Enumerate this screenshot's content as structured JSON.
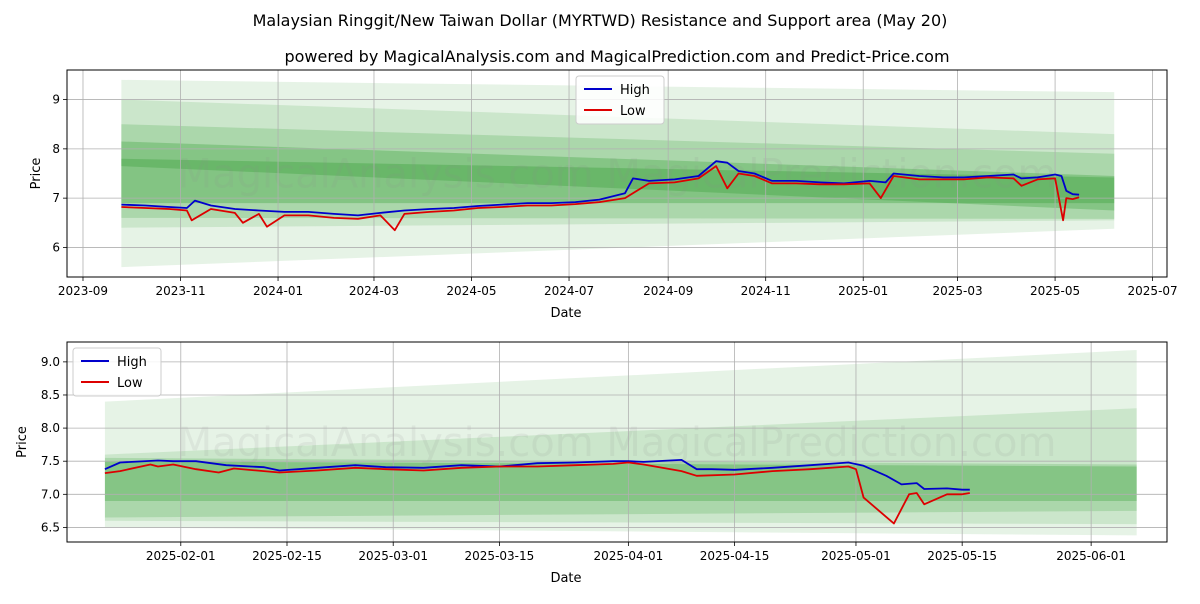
{
  "title": "Malaysian Ringgit/New Taiwan Dollar (MYRTWD) Resistance and Support area (May 20)",
  "subtitle": "powered by MagicalAnalysis.com and MagicalPrediction.com and Predict-Price.com",
  "watermark": "MagicalAnalysis.com    MagicalPrediction.com",
  "colors": {
    "high": "#0000cc",
    "low": "#dd0000",
    "band": "#2e9a2e",
    "grid": "#b0b0b0"
  },
  "chart_data": [
    {
      "type": "line",
      "xlabel": "Date",
      "ylabel": "Price",
      "x_ticks": [
        "2023-09-01",
        "2023-11-01",
        "2024-01-01",
        "2024-03-01",
        "2024-05-01",
        "2024-07-01",
        "2024-09-01",
        "2024-11-01",
        "2025-01-01",
        "2025-03-01",
        "2025-05-01",
        "2025-07-01"
      ],
      "x_tick_labels": [
        "2023-09",
        "2023-11",
        "2024-01",
        "2024-03",
        "2024-05",
        "2024-07",
        "2024-09",
        "2024-11",
        "2025-01",
        "2025-03",
        "2025-05",
        "2025-07"
      ],
      "xlim": [
        "2023-08-22",
        "2025-07-10"
      ],
      "y_ticks": [
        6,
        7,
        8,
        9
      ],
      "ylim": [
        5.4,
        9.6
      ],
      "grid": true,
      "legend": {
        "placement": "top-center",
        "entries": [
          "High",
          "Low"
        ]
      },
      "bands": [
        {
          "x": [
            "2023-09-25",
            "2025-06-07"
          ],
          "upper": [
            9.4,
            9.15
          ],
          "lower": [
            5.6,
            6.38
          ]
        },
        {
          "x": [
            "2023-09-25",
            "2025-06-07"
          ],
          "upper": [
            9.0,
            8.3
          ],
          "lower": [
            6.4,
            6.55
          ]
        },
        {
          "x": [
            "2023-09-25",
            "2025-06-07"
          ],
          "upper": [
            8.5,
            7.9
          ],
          "lower": [
            6.6,
            6.58
          ]
        },
        {
          "x": [
            "2023-09-25",
            "2025-06-07"
          ],
          "upper": [
            8.15,
            7.45
          ],
          "lower": [
            7.65,
            6.75
          ]
        },
        {
          "x": [
            "2023-09-25",
            "2025-06-07"
          ],
          "upper": [
            7.8,
            7.42
          ],
          "lower": [
            6.9,
            6.9
          ]
        }
      ],
      "series": [
        {
          "name": "High",
          "x": [
            "2023-09-25",
            "2023-10-10",
            "2023-10-25",
            "2023-11-05",
            "2023-11-10",
            "2023-11-20",
            "2023-12-05",
            "2023-12-20",
            "2024-01-05",
            "2024-01-20",
            "2024-02-05",
            "2024-02-20",
            "2024-03-05",
            "2024-03-20",
            "2024-04-05",
            "2024-04-20",
            "2024-05-05",
            "2024-05-20",
            "2024-06-05",
            "2024-06-20",
            "2024-07-05",
            "2024-07-20",
            "2024-08-05",
            "2024-08-10",
            "2024-08-20",
            "2024-09-05",
            "2024-09-20",
            "2024-10-01",
            "2024-10-08",
            "2024-10-15",
            "2024-10-25",
            "2024-11-05",
            "2024-11-20",
            "2024-12-05",
            "2024-12-20",
            "2025-01-05",
            "2025-01-15",
            "2025-01-20",
            "2025-02-05",
            "2025-02-20",
            "2025-03-05",
            "2025-03-20",
            "2025-04-05",
            "2025-04-10",
            "2025-04-20",
            "2025-05-01",
            "2025-05-05",
            "2025-05-08",
            "2025-05-12",
            "2025-05-16"
          ],
          "y": [
            6.87,
            6.85,
            6.82,
            6.8,
            6.95,
            6.85,
            6.78,
            6.75,
            6.72,
            6.72,
            6.68,
            6.65,
            6.7,
            6.75,
            6.78,
            6.8,
            6.84,
            6.87,
            6.9,
            6.9,
            6.92,
            6.97,
            7.1,
            7.4,
            7.35,
            7.38,
            7.45,
            7.75,
            7.72,
            7.55,
            7.5,
            7.35,
            7.35,
            7.32,
            7.3,
            7.35,
            7.32,
            7.5,
            7.45,
            7.42,
            7.42,
            7.45,
            7.48,
            7.4,
            7.42,
            7.48,
            7.45,
            7.15,
            7.08,
            7.07
          ]
        },
        {
          "name": "Low",
          "x": [
            "2023-09-25",
            "2023-10-10",
            "2023-10-25",
            "2023-11-05",
            "2023-11-08",
            "2023-11-20",
            "2023-12-05",
            "2023-12-10",
            "2023-12-20",
            "2023-12-25",
            "2024-01-05",
            "2024-01-20",
            "2024-02-05",
            "2024-02-20",
            "2024-03-05",
            "2024-03-14",
            "2024-03-20",
            "2024-04-05",
            "2024-04-20",
            "2024-05-05",
            "2024-05-20",
            "2024-06-05",
            "2024-06-20",
            "2024-07-05",
            "2024-07-20",
            "2024-08-05",
            "2024-08-20",
            "2024-09-05",
            "2024-09-20",
            "2024-10-01",
            "2024-10-08",
            "2024-10-15",
            "2024-10-25",
            "2024-11-05",
            "2024-11-20",
            "2024-12-05",
            "2024-12-20",
            "2025-01-05",
            "2025-01-12",
            "2025-01-20",
            "2025-02-05",
            "2025-02-20",
            "2025-03-05",
            "2025-03-20",
            "2025-04-05",
            "2025-04-10",
            "2025-04-20",
            "2025-05-01",
            "2025-05-06",
            "2025-05-08",
            "2025-05-12",
            "2025-05-16"
          ],
          "y": [
            6.82,
            6.8,
            6.78,
            6.75,
            6.55,
            6.78,
            6.7,
            6.5,
            6.68,
            6.42,
            6.65,
            6.65,
            6.6,
            6.58,
            6.65,
            6.35,
            6.68,
            6.72,
            6.75,
            6.8,
            6.82,
            6.85,
            6.85,
            6.88,
            6.92,
            7.0,
            7.3,
            7.32,
            7.4,
            7.65,
            7.2,
            7.5,
            7.45,
            7.3,
            7.3,
            7.28,
            7.28,
            7.3,
            7.0,
            7.45,
            7.38,
            7.38,
            7.38,
            7.42,
            7.4,
            7.25,
            7.38,
            7.4,
            6.55,
            7.0,
            6.98,
            7.02
          ]
        }
      ]
    },
    {
      "type": "line",
      "xlabel": "Date",
      "ylabel": "Price",
      "x_ticks": [
        "2025-02-01",
        "2025-02-15",
        "2025-03-01",
        "2025-03-15",
        "2025-04-01",
        "2025-04-15",
        "2025-05-01",
        "2025-05-15",
        "2025-06-01"
      ],
      "x_tick_labels": [
        "2025-02-01",
        "2025-02-15",
        "2025-03-01",
        "2025-03-15",
        "2025-04-01",
        "2025-04-15",
        "2025-05-01",
        "2025-05-15",
        "2025-06-01"
      ],
      "xlim": [
        "2025-01-17",
        "2025-06-11"
      ],
      "y_ticks": [
        6.5,
        7.0,
        7.5,
        8.0,
        8.5,
        9.0
      ],
      "y_tick_labels": [
        "6.5",
        "7.0",
        "7.5",
        "8.0",
        "8.5",
        "9.0"
      ],
      "ylim": [
        6.28,
        9.3
      ],
      "grid": true,
      "legend": {
        "placement": "top-left",
        "entries": [
          "High",
          "Low"
        ]
      },
      "bands": [
        {
          "x": [
            "2025-01-22",
            "2025-06-07"
          ],
          "upper": [
            8.4,
            9.18
          ],
          "lower": [
            6.5,
            6.38
          ]
        },
        {
          "x": [
            "2025-01-22",
            "2025-06-07"
          ],
          "upper": [
            7.6,
            8.3
          ],
          "lower": [
            6.6,
            6.55
          ]
        },
        {
          "x": [
            "2025-01-22",
            "2025-06-07"
          ],
          "upper": [
            7.55,
            7.45
          ],
          "lower": [
            6.65,
            6.75
          ]
        },
        {
          "x": [
            "2025-01-22",
            "2025-06-07"
          ],
          "upper": [
            7.5,
            7.42
          ],
          "lower": [
            6.9,
            6.9
          ]
        }
      ],
      "series": [
        {
          "name": "High",
          "x": [
            "2025-01-22",
            "2025-01-24",
            "2025-01-29",
            "2025-01-31",
            "2025-02-03",
            "2025-02-07",
            "2025-02-12",
            "2025-02-14",
            "2025-02-19",
            "2025-02-24",
            "2025-02-28",
            "2025-03-05",
            "2025-03-10",
            "2025-03-15",
            "2025-03-20",
            "2025-03-25",
            "2025-03-30",
            "2025-04-01",
            "2025-04-03",
            "2025-04-08",
            "2025-04-10",
            "2025-04-12",
            "2025-04-15",
            "2025-04-20",
            "2025-04-25",
            "2025-04-30",
            "2025-05-02",
            "2025-05-05",
            "2025-05-07",
            "2025-05-09",
            "2025-05-10",
            "2025-05-13",
            "2025-05-15",
            "2025-05-16"
          ],
          "y": [
            7.38,
            7.48,
            7.51,
            7.5,
            7.5,
            7.44,
            7.41,
            7.36,
            7.4,
            7.44,
            7.41,
            7.4,
            7.44,
            7.42,
            7.47,
            7.48,
            7.5,
            7.5,
            7.49,
            7.52,
            7.38,
            7.38,
            7.37,
            7.4,
            7.44,
            7.48,
            7.43,
            7.28,
            7.15,
            7.17,
            7.08,
            7.09,
            7.07,
            7.07
          ]
        },
        {
          "name": "Low",
          "x": [
            "2025-01-22",
            "2025-01-24",
            "2025-01-28",
            "2025-01-29",
            "2025-01-31",
            "2025-02-03",
            "2025-02-06",
            "2025-02-08",
            "2025-02-14",
            "2025-02-19",
            "2025-02-24",
            "2025-02-28",
            "2025-03-05",
            "2025-03-10",
            "2025-03-15",
            "2025-03-20",
            "2025-03-25",
            "2025-03-30",
            "2025-04-01",
            "2025-04-03",
            "2025-04-08",
            "2025-04-10",
            "2025-04-15",
            "2025-04-20",
            "2025-04-25",
            "2025-04-30",
            "2025-05-01",
            "2025-05-02",
            "2025-05-06",
            "2025-05-08",
            "2025-05-09",
            "2025-05-10",
            "2025-05-13",
            "2025-05-15",
            "2025-05-16"
          ],
          "y": [
            7.32,
            7.35,
            7.45,
            7.42,
            7.45,
            7.38,
            7.33,
            7.39,
            7.33,
            7.36,
            7.4,
            7.38,
            7.36,
            7.4,
            7.42,
            7.42,
            7.44,
            7.46,
            7.48,
            7.45,
            7.35,
            7.28,
            7.3,
            7.35,
            7.38,
            7.42,
            7.38,
            6.95,
            6.56,
            7.0,
            7.02,
            6.85,
            7.0,
            7.0,
            7.02
          ]
        }
      ]
    }
  ]
}
